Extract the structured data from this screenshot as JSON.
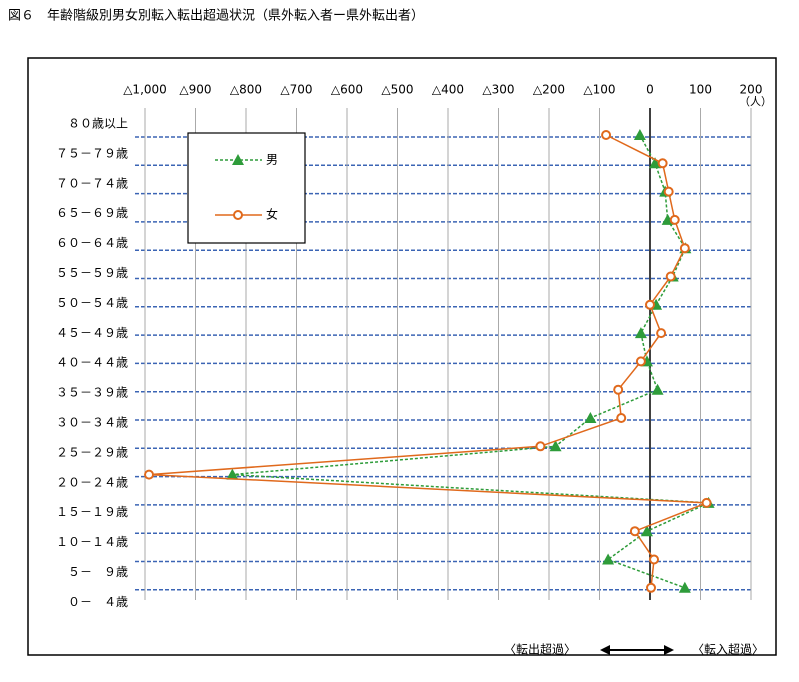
{
  "chart_data": {
    "type": "line",
    "title": "図６　年齢階級別男女別転入転出超過状況（県外転入者ー県外転出者）",
    "x_unit": "（人）",
    "annotations": [
      "〈転出超過〉",
      "〈転入超過〉"
    ],
    "categories": [
      "８０歳以上",
      "７５－７９歳",
      "７０－７４歳",
      "６５－６９歳",
      "６０－６４歳",
      "５５－５９歳",
      "５０－５４歳",
      "４５－４９歳",
      "４０－４４歳",
      "３５－３９歳",
      "３０－３４歳",
      "２５－２９歳",
      "２０－２４歳",
      "１５－１９歳",
      "１０－１４歳",
      "５－　９歳",
      "０－　４歳"
    ],
    "series": [
      {
        "name": "男",
        "color": "#2e9c3a",
        "marker": "triangle",
        "dashed": true,
        "values": [
          -20,
          10,
          30,
          35,
          70,
          45,
          12,
          -18,
          -6,
          15,
          -118,
          -187,
          -827,
          116,
          -6,
          -83,
          69
        ]
      },
      {
        "name": "女",
        "color": "#e0691c",
        "marker": "circle",
        "dashed": false,
        "values": [
          -87,
          25,
          37,
          49,
          69,
          41,
          0,
          22,
          -18,
          -63,
          -57,
          -217,
          -992,
          112,
          -30,
          8,
          2
        ]
      }
    ],
    "xlim": [
      -1000,
      200
    ],
    "xticks": [
      {
        "value": -1000,
        "label": "△1,000"
      },
      {
        "value": -900,
        "label": "△900"
      },
      {
        "value": -800,
        "label": "△800"
      },
      {
        "value": -700,
        "label": "△700"
      },
      {
        "value": -600,
        "label": "△600"
      },
      {
        "value": -500,
        "label": "△500"
      },
      {
        "value": -400,
        "label": "△400"
      },
      {
        "value": -300,
        "label": "△300"
      },
      {
        "value": -200,
        "label": "△200"
      },
      {
        "value": -100,
        "label": "△100"
      },
      0,
      100,
      200
    ],
    "grid": true
  }
}
